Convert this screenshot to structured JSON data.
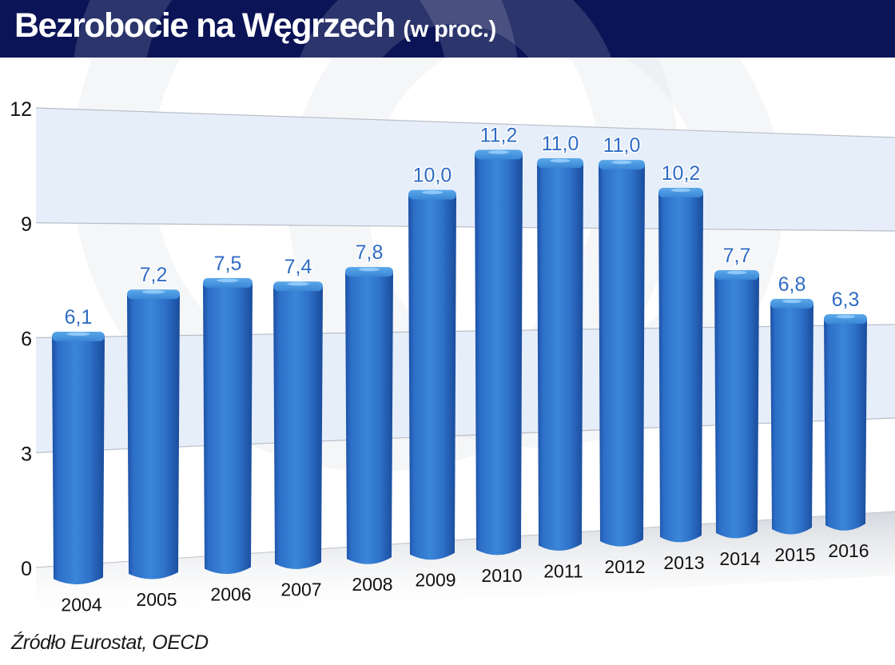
{
  "header": {
    "title": "Bezrobocie na Węgrzech",
    "subtitle": "(w proc.)",
    "background_color": "#0b1456"
  },
  "footer": {
    "source": "Źródło Eurostat, OECD"
  },
  "colors": {
    "bar": "#2d6fc8",
    "bar_highlight": "#4a96e0",
    "bar_shadow": "#1d4fa3",
    "value_label": "#2f6cc4",
    "band": "#e6eefa"
  },
  "chart_data": {
    "type": "bar",
    "title": "Bezrobocie na Węgrzech (w proc.)",
    "xlabel": "",
    "ylabel": "",
    "categories": [
      "2004",
      "2005",
      "2006",
      "2007",
      "2008",
      "2009",
      "2010",
      "2011",
      "2012",
      "2013",
      "2014",
      "2015",
      "2016"
    ],
    "values": [
      6.1,
      7.2,
      7.5,
      7.4,
      7.8,
      10.0,
      11.2,
      11.0,
      11.0,
      10.2,
      7.7,
      6.8,
      6.3
    ],
    "value_labels": [
      "6,1",
      "7,2",
      "7,5",
      "7,4",
      "7,8",
      "10,0",
      "11,2",
      "11,0",
      "11,0",
      "10,2",
      "7,7",
      "6,8",
      "6,3"
    ],
    "yticks": [
      0,
      3,
      6,
      9,
      12
    ],
    "ylim": [
      0,
      12
    ],
    "grid": true,
    "legend": "none",
    "source": "Źródło Eurostat, OECD"
  }
}
